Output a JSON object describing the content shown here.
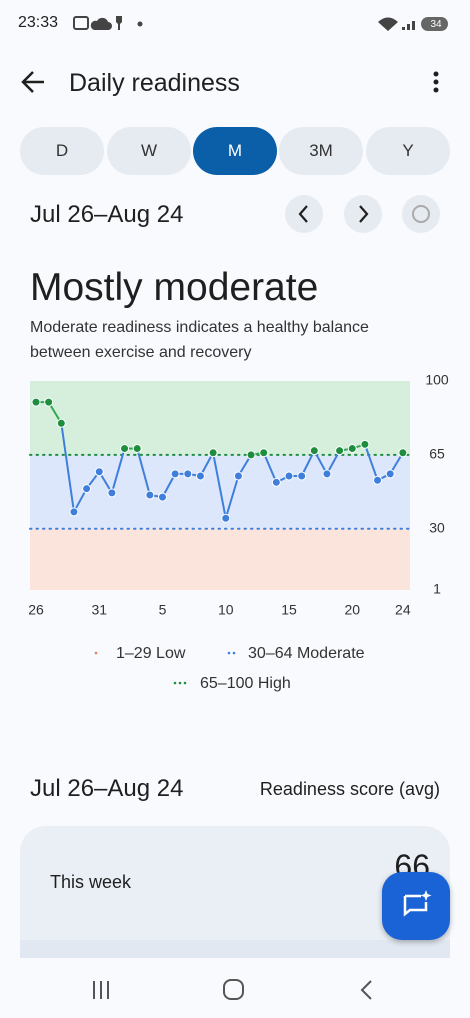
{
  "status_bar": {
    "time": "23:33",
    "battery": "34"
  },
  "header": {
    "title": "Daily readiness"
  },
  "tabs": {
    "items": [
      "D",
      "W",
      "M",
      "3M",
      "Y"
    ],
    "selected": 2
  },
  "date_range": "Jul 26–Aug 24",
  "summary": {
    "title": "Mostly moderate",
    "description": "Moderate readiness indicates a healthy balance between exercise and recovery"
  },
  "chart_data": {
    "type": "line",
    "categories": [
      "26",
      null,
      null,
      null,
      null,
      "31",
      null,
      null,
      null,
      null,
      "5",
      null,
      null,
      null,
      null,
      "10",
      null,
      null,
      null,
      null,
      "15",
      null,
      null,
      null,
      null,
      "20",
      null,
      null,
      null,
      "24"
    ],
    "values": [
      90,
      90,
      80,
      38,
      49,
      57,
      47,
      68,
      68,
      46,
      45,
      56,
      56,
      55,
      66,
      35,
      55,
      65,
      66,
      52,
      55,
      55,
      67,
      56,
      67,
      68,
      70,
      53,
      56,
      66
    ],
    "ylim": [
      1,
      100
    ],
    "yticks": [
      1,
      30,
      65,
      100
    ],
    "bands": [
      {
        "label": "1–29 Low",
        "color": "#e07a5f",
        "fill": "#fbe4dc",
        "range": [
          1,
          30
        ]
      },
      {
        "label": "30–64 Moderate",
        "color": "#3f7fdb",
        "fill": "#dde7fb",
        "range": [
          30,
          65
        ]
      },
      {
        "label": "65–100 High",
        "color": "#1e8e3e",
        "fill": "#d6efdd",
        "range": [
          65,
          100
        ]
      }
    ]
  },
  "table": {
    "date_range": "Jul 26–Aug 24",
    "column": "Readiness score (avg)",
    "rows": [
      {
        "label": "This week",
        "value": 66
      }
    ]
  }
}
